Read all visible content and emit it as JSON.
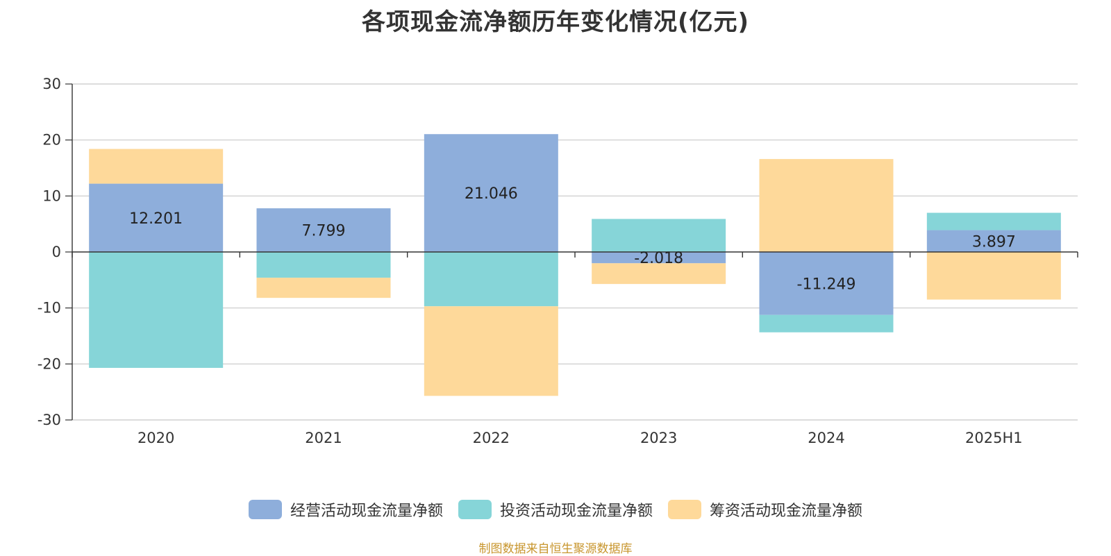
{
  "colors": {
    "operating": "#8eaedb",
    "investing": "#86d5d8",
    "financing": "#fed99a",
    "grid": "#c8c8c8",
    "axis": "#333333",
    "source": "#c8962e"
  },
  "source_text": "制图数据来自恒生聚源数据库",
  "chart_data": {
    "type": "bar",
    "stacked": true,
    "title": "各项现金流净额历年变化情况(亿元)",
    "xlabel": "",
    "ylabel": "",
    "categories": [
      "2020",
      "2021",
      "2022",
      "2023",
      "2024",
      "2025H1"
    ],
    "ylim": [
      -30,
      30
    ],
    "yticks": [
      30,
      20,
      10,
      0,
      -10,
      -20,
      -30
    ],
    "grid": true,
    "legend_position": "bottom-center",
    "series": [
      {
        "name": "经营活动现金流量净额",
        "color_key": "operating",
        "values": [
          12.201,
          7.799,
          21.046,
          -2.018,
          -11.249,
          3.897
        ],
        "labels": [
          "12.201",
          "7.799",
          "21.046",
          "-2.018",
          "-11.249",
          "3.897"
        ]
      },
      {
        "name": "投资活动现金流量净额",
        "color_key": "investing",
        "values": [
          -20.7,
          -4.6,
          -9.7,
          5.9,
          -3.1,
          3.1
        ]
      },
      {
        "name": "筹资活动现金流量净额",
        "color_key": "financing",
        "values": [
          6.2,
          -3.6,
          -16.0,
          -3.7,
          16.6,
          -8.5
        ]
      }
    ]
  }
}
